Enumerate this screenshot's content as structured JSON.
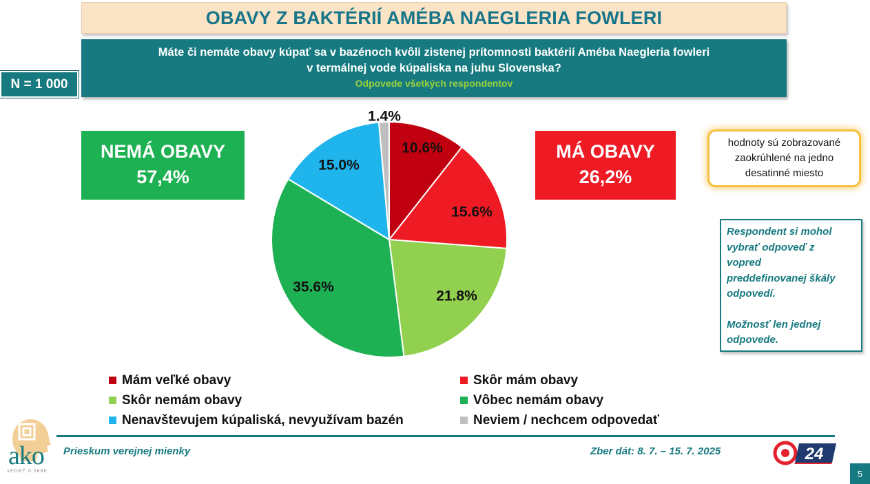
{
  "title": "OBAVY Z BAKTÉRIÍ AMÉBA NAEGLERIA FOWLERI",
  "question": {
    "line1": "Máte či nemáte obavy kúpať sa v bazénoch kvôli zistenej prítomnosti baktérií Améba Naegleria fowleri",
    "line2": "v termálnej vode kúpaliska na juhu Slovenska?",
    "subtitle": "Odpovede všetkých respondentov"
  },
  "sample": "N = 1 000",
  "summary": {
    "no_concern_label": "NEMÁ OBAVY",
    "no_concern_value": "57,4%",
    "concern_label": "MÁ OBAVY",
    "concern_value": "26,2%"
  },
  "note": {
    "line1": "hodnoty sú zobrazované",
    "line2": "zaokrúhlené na jedno",
    "line3": "desatinné miesto"
  },
  "respondent_note": {
    "line1": "Respondent si mohol",
    "line2": "vybrať odpoveď z",
    "line3": "vopred",
    "line4": "preddefinovanej škály",
    "line5": "odpovedí.",
    "line6": "Možnosť len jednej",
    "line7": "odpovede."
  },
  "chart_data": {
    "type": "pie",
    "start_angle_deg": 0,
    "direction": "clockwise",
    "slices": [
      {
        "label": "Mám veľké obavy",
        "value": 10.6,
        "display": "10.6%",
        "color": "#c00010"
      },
      {
        "label": "Skôr mám obavy",
        "value": 15.6,
        "display": "15.6%",
        "color": "#ee1b24"
      },
      {
        "label": "Skôr nemám obavy",
        "value": 21.8,
        "display": "21.8%",
        "color": "#92d050"
      },
      {
        "label": "Vôbec nemám obavy",
        "value": 35.6,
        "display": "35.6%",
        "color": "#1eb153"
      },
      {
        "label": "Nenavštevujem kúpaliská, nevyužívam bazén",
        "value": 15.0,
        "display": "15.0%",
        "color": "#1fb5ec"
      },
      {
        "label": "Neviem / nechcem odpovedať",
        "value": 1.4,
        "display": "1.4%",
        "color": "#bfbfbf"
      }
    ]
  },
  "footer": {
    "left": "Prieskum verejnej mienky",
    "right": "Zber dát: 8. 7. – 15. 7. 2025",
    "page": "5"
  },
  "logos": {
    "ako_text": "ako",
    "ako_tagline": "VEDIEŤ O SEBE",
    "tv_text": "24"
  }
}
